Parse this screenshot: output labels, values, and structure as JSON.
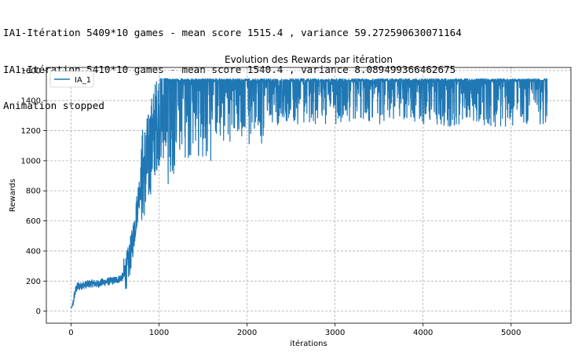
{
  "console": {
    "lines": [
      "IA1-Itération 5409*10 games - mean score 1515.4 , variance 59.272590630071164",
      "IA1-Itération 5410*10 games - mean score 1540.4 , variance 8.089499366462675",
      "Animation stopped"
    ]
  },
  "chart_data": {
    "type": "line",
    "title": "Evolution des Rewards par itération",
    "xlabel": "itérations",
    "ylabel": "Rewards",
    "xlim": [
      -280,
      5680
    ],
    "ylim": [
      -80,
      1620
    ],
    "xticks": [
      0,
      1000,
      2000,
      3000,
      4000,
      5000
    ],
    "yticks": [
      0,
      200,
      400,
      600,
      800,
      1000,
      1200,
      1400,
      1600
    ],
    "grid": true,
    "legend": "upper left",
    "series": [
      {
        "name": "IA_1",
        "color": "#1f77b4",
        "x": [
          0,
          20,
          40,
          60,
          80,
          120,
          160,
          200,
          250,
          300,
          350,
          400,
          450,
          500,
          550,
          600,
          630,
          660,
          690,
          720,
          750,
          780,
          800,
          820,
          850,
          880,
          900,
          930,
          960,
          1000,
          1050,
          1100,
          1150,
          1200,
          1300,
          1400,
          1500,
          1600,
          1800,
          2000,
          2500,
          3000,
          3500,
          4000,
          4500,
          5000,
          5410
        ],
        "values": [
          20,
          40,
          110,
          150,
          165,
          170,
          175,
          180,
          185,
          180,
          190,
          195,
          200,
          205,
          215,
          235,
          270,
          330,
          420,
          540,
          680,
          820,
          880,
          920,
          960,
          1010,
          1080,
          1150,
          1220,
          1300,
          1350,
          1400,
          1440,
          1470,
          1490,
          1500,
          1505,
          1510,
          1515,
          1520,
          1525,
          1525,
          1530,
          1530,
          1530,
          1530,
          1530
        ],
        "noise_range": [
          [
            0,
            20,
            5
          ],
          [
            20,
            100,
            30
          ],
          [
            100,
            600,
            25
          ],
          [
            600,
            800,
            120
          ],
          [
            800,
            1000,
            320
          ],
          [
            1000,
            1200,
            350
          ],
          [
            1200,
            1600,
            280
          ],
          [
            1600,
            2200,
            220
          ],
          [
            2200,
            4000,
            150
          ],
          [
            4000,
            5410,
            160
          ]
        ]
      }
    ]
  }
}
